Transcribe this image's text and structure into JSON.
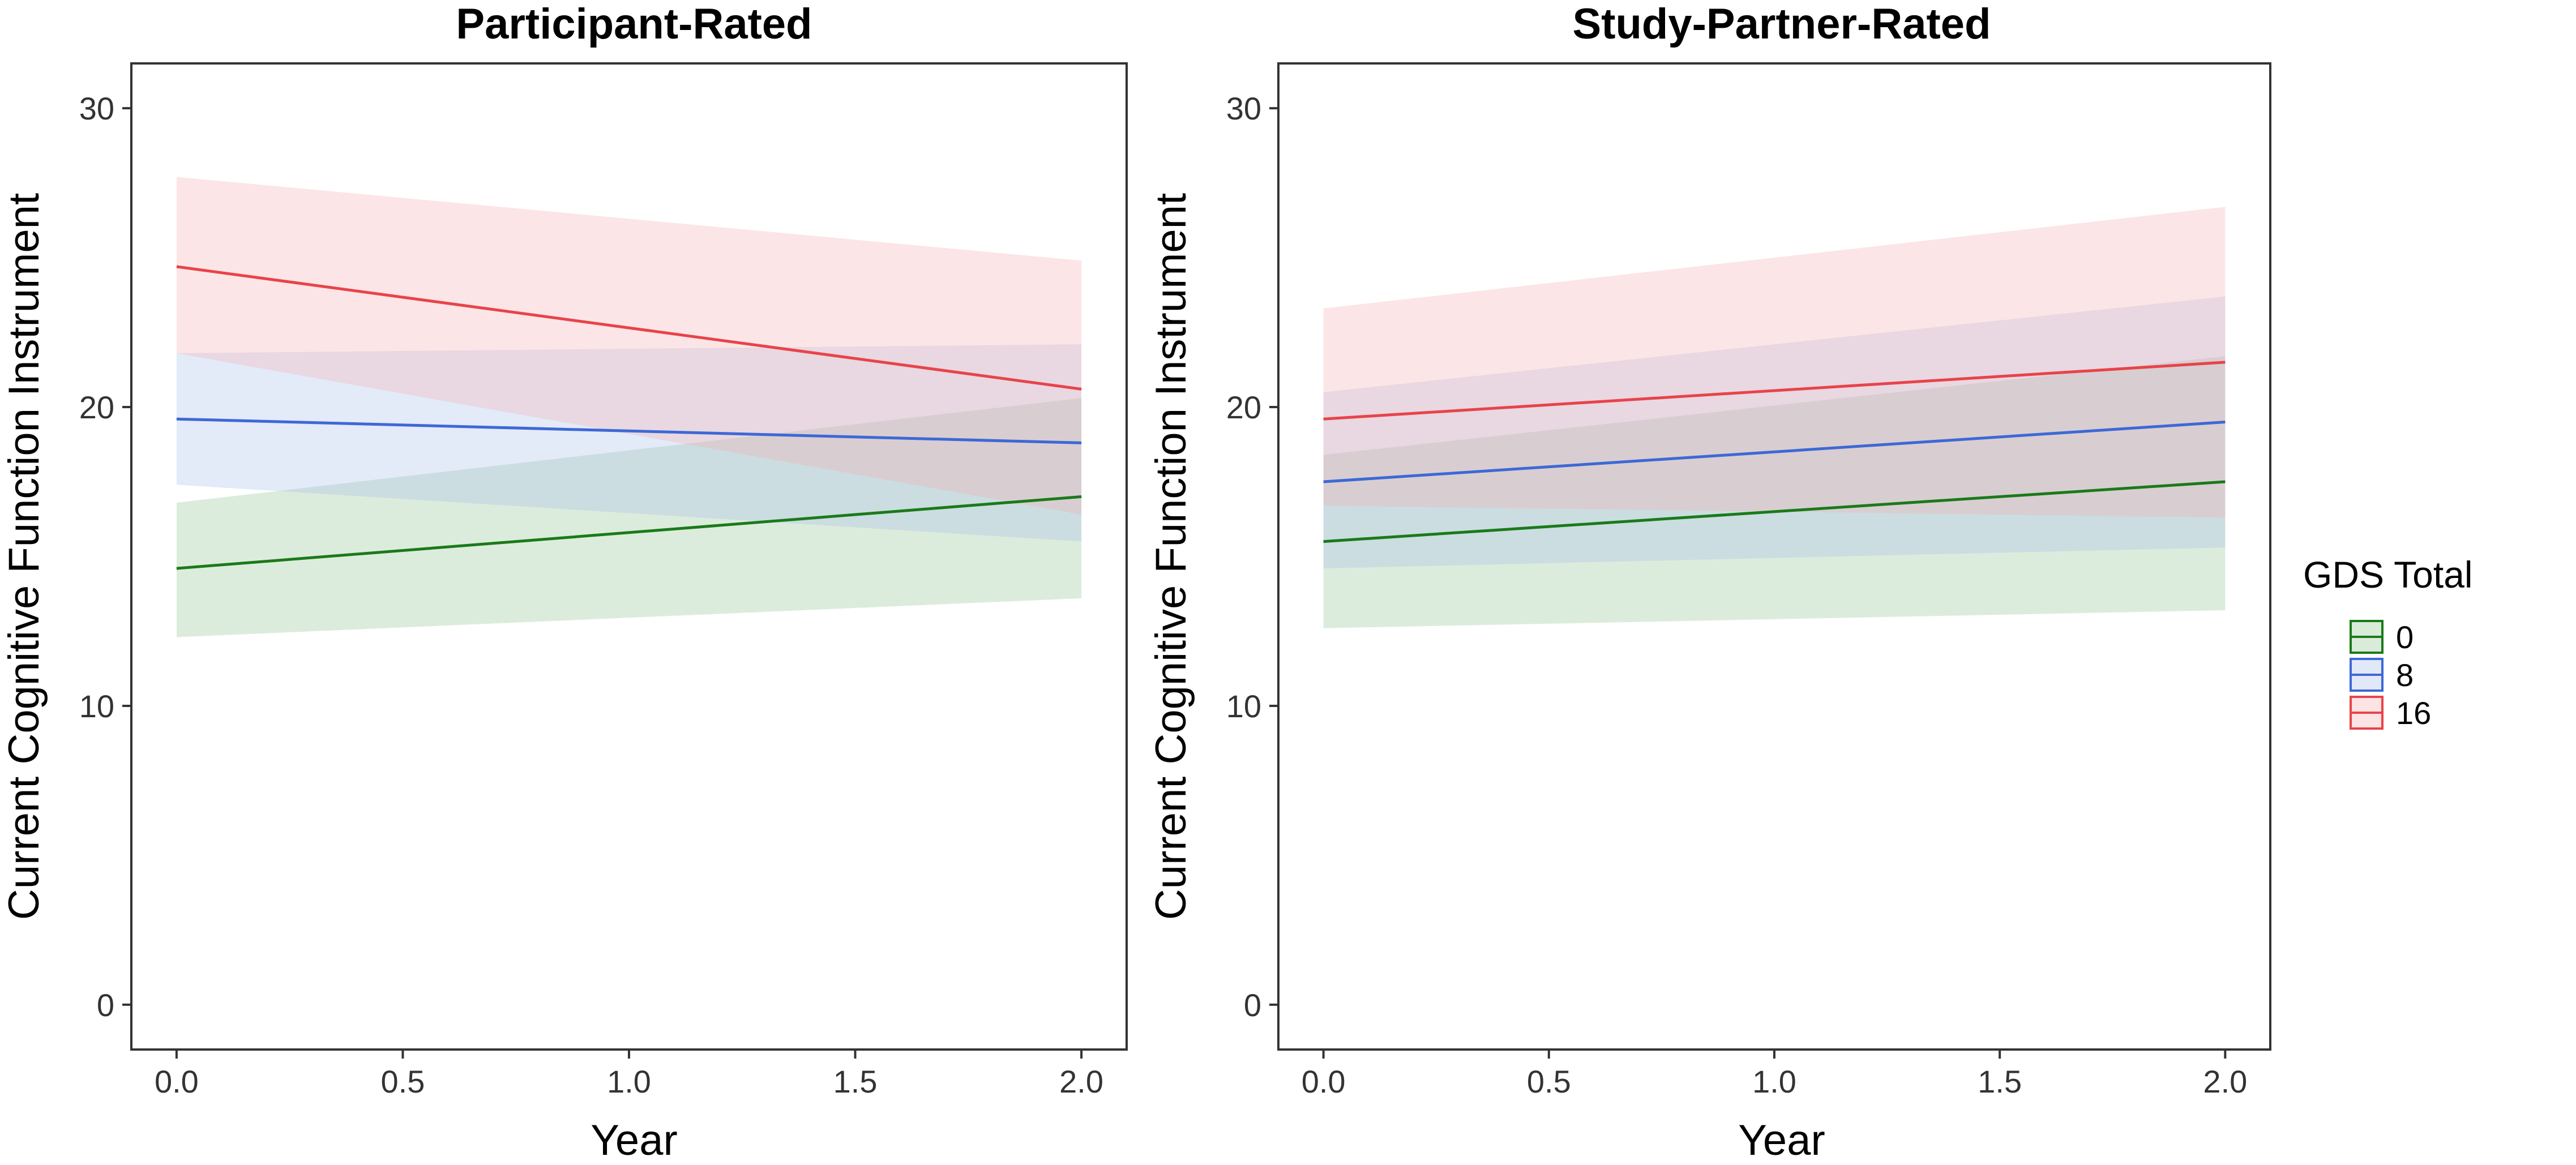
{
  "chart_data": [
    {
      "type": "line",
      "title": "Participant-Rated",
      "xlabel": "Year",
      "ylabel": "Current Cognitive Function Instrument",
      "xlim": [
        -0.1,
        2.1
      ],
      "ylim": [
        -1.5,
        31.5
      ],
      "xticks": [
        "0.0",
        "0.5",
        "1.0",
        "1.5",
        "2.0"
      ],
      "yticks": [
        "0",
        "10",
        "20",
        "30"
      ],
      "series": [
        {
          "name": "0",
          "x": [
            0,
            2
          ],
          "y": [
            14.6,
            17.0
          ],
          "lower": [
            12.3,
            13.6
          ],
          "upper": [
            16.8,
            20.3
          ]
        },
        {
          "name": "8",
          "x": [
            0,
            2
          ],
          "y": [
            19.6,
            18.8
          ],
          "lower": [
            17.4,
            15.5
          ],
          "upper": [
            21.8,
            22.1
          ]
        },
        {
          "name": "16",
          "x": [
            0,
            2
          ],
          "y": [
            24.7,
            20.6
          ],
          "lower": [
            21.8,
            16.4
          ],
          "upper": [
            27.7,
            24.9
          ]
        }
      ]
    },
    {
      "type": "line",
      "title": "Study-Partner-Rated",
      "xlabel": "Year",
      "ylabel": "Current Cognitive Function Instrument",
      "xlim": [
        -0.1,
        2.1
      ],
      "ylim": [
        -1.5,
        31.5
      ],
      "xticks": [
        "0.0",
        "0.5",
        "1.0",
        "1.5",
        "2.0"
      ],
      "yticks": [
        "0",
        "10",
        "20",
        "30"
      ],
      "series": [
        {
          "name": "0",
          "x": [
            0,
            2
          ],
          "y": [
            15.5,
            17.5
          ],
          "lower": [
            12.6,
            13.2
          ],
          "upper": [
            18.4,
            21.7
          ]
        },
        {
          "name": "8",
          "x": [
            0,
            2
          ],
          "y": [
            17.5,
            19.5
          ],
          "lower": [
            14.6,
            15.3
          ],
          "upper": [
            20.5,
            23.7
          ]
        },
        {
          "name": "16",
          "x": [
            0,
            2
          ],
          "y": [
            19.6,
            21.5
          ],
          "lower": [
            16.7,
            16.3
          ],
          "upper": [
            23.3,
            26.7
          ]
        }
      ]
    }
  ],
  "legend": {
    "title": "GDS Total",
    "entries": [
      {
        "label": "0",
        "color": "#1a7a1a",
        "fill": "#93c593"
      },
      {
        "label": "8",
        "color": "#3d68d6",
        "fill": "#a9bde8"
      },
      {
        "label": "16",
        "color": "#e8434a",
        "fill": "#f6aeb2"
      }
    ]
  },
  "colors": {
    "0": {
      "line": "#1a7a1a",
      "fill": "#93c593"
    },
    "8": {
      "line": "#3d68d6",
      "fill": "#a9bde8"
    },
    "16": {
      "line": "#e8434a",
      "fill": "#f6aeb2"
    }
  }
}
